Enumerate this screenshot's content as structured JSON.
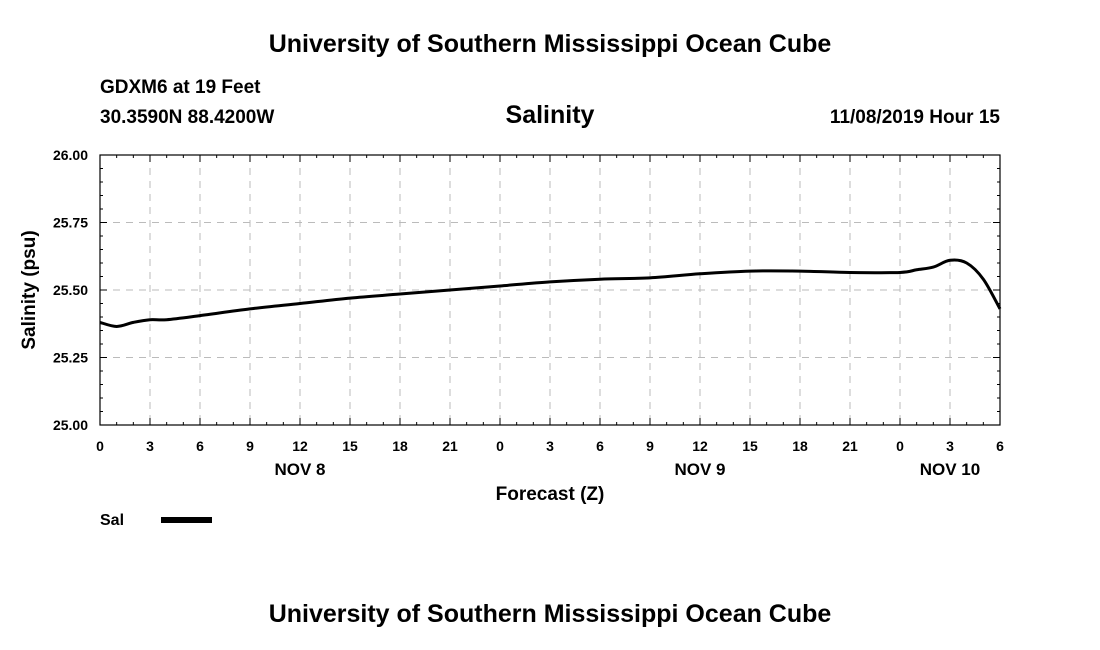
{
  "header": {
    "top_title": "University of Southern Mississippi Ocean Cube",
    "station": "GDXM6 at 19 Feet",
    "coords": "30.3590N 88.4200W",
    "variable": "Salinity",
    "datetime": "11/08/2019 Hour 15"
  },
  "footer": {
    "bottom_title": "University of Southern Mississippi Ocean Cube"
  },
  "legend": {
    "label": "Sal"
  },
  "colors": {
    "line": "#000000",
    "grid": "#bbbbbb"
  },
  "chart_data": {
    "type": "line",
    "title": "Salinity",
    "xlabel": "Forecast (Z)",
    "ylabel": "Salinity (psu)",
    "ylim": [
      25.0,
      26.0
    ],
    "xlim": [
      0,
      54
    ],
    "y_ticks": [
      "25.00",
      "25.25",
      "25.50",
      "25.75",
      "26.00"
    ],
    "x_ticks": [
      "0",
      "3",
      "6",
      "9",
      "12",
      "15",
      "18",
      "21",
      "0",
      "3",
      "6",
      "9",
      "12",
      "15",
      "18",
      "21",
      "0",
      "3",
      "6"
    ],
    "day_labels": [
      {
        "label": "NOV 8",
        "hour": 12
      },
      {
        "label": "NOV 9",
        "hour": 36
      },
      {
        "label": "NOV 10",
        "hour": 51
      }
    ],
    "grid": true,
    "series": [
      {
        "name": "Sal",
        "x": [
          0,
          1,
          2,
          3,
          4,
          6,
          9,
          12,
          15,
          18,
          21,
          24,
          27,
          30,
          33,
          36,
          39,
          42,
          45,
          48,
          49,
          50,
          51,
          52,
          53,
          54
        ],
        "values": [
          25.38,
          25.365,
          25.38,
          25.39,
          25.39,
          25.405,
          25.43,
          25.45,
          25.47,
          25.485,
          25.5,
          25.515,
          25.53,
          25.54,
          25.545,
          25.56,
          25.57,
          25.57,
          25.565,
          25.565,
          25.575,
          25.585,
          25.61,
          25.6,
          25.54,
          25.43
        ]
      }
    ]
  }
}
